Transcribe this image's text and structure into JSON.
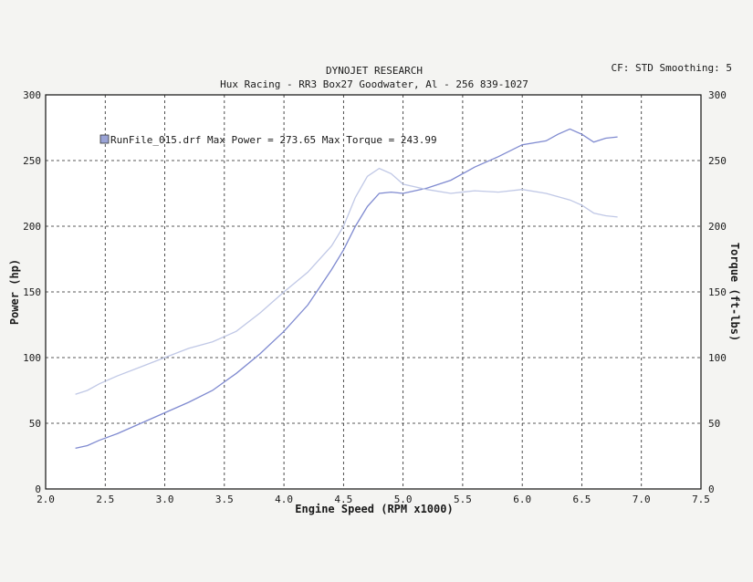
{
  "header": {
    "title": "DYNOJET RESEARCH",
    "subtitle": "Hux Racing - RR3 Box27 Goodwater, Al - 256 839-1027",
    "corner_info": "CF: STD  Smoothing: 5"
  },
  "legend": {
    "text": "RunFile_015.drf Max Power = 273.65    Max Torque = 243.99",
    "swatch_color": "#9aa3d6"
  },
  "colors": {
    "power": "#7f8ad0",
    "torque": "#c0c8e6"
  },
  "chart_data": {
    "type": "line",
    "xlabel": "Engine Speed (RPM x1000)",
    "ylabel": "Power (hp)",
    "y2label": "Torque (ft-lbs)",
    "xlim": [
      2.0,
      7.5
    ],
    "ylim": [
      0,
      300
    ],
    "y2lim": [
      0,
      300
    ],
    "xticks": [
      "2.0",
      "2.5",
      "3.0",
      "3.5",
      "4.0",
      "4.5",
      "5.0",
      "5.5",
      "6.0",
      "6.5",
      "7.0",
      "7.5"
    ],
    "yticks": [
      "0",
      "50",
      "100",
      "150",
      "200",
      "250",
      "300"
    ],
    "y2ticks": [
      "0",
      "50",
      "100",
      "150",
      "200",
      "250",
      "300"
    ],
    "grid": true,
    "series": [
      {
        "name": "Power",
        "axis": "left",
        "x": [
          2.25,
          2.35,
          2.45,
          2.6,
          2.8,
          3.0,
          3.2,
          3.4,
          3.6,
          3.8,
          4.0,
          4.2,
          4.4,
          4.5,
          4.6,
          4.7,
          4.8,
          4.9,
          5.0,
          5.2,
          5.4,
          5.6,
          5.8,
          6.0,
          6.2,
          6.3,
          6.4,
          6.5,
          6.6,
          6.7,
          6.8
        ],
        "values": [
          31,
          33,
          37,
          42,
          50,
          58,
          66,
          75,
          88,
          103,
          120,
          140,
          167,
          182,
          200,
          215,
          225,
          226,
          225,
          229,
          235,
          245,
          253,
          262,
          265,
          270,
          274,
          270,
          264,
          267,
          268
        ]
      },
      {
        "name": "Torque",
        "axis": "right",
        "x": [
          2.25,
          2.35,
          2.45,
          2.6,
          2.8,
          3.0,
          3.2,
          3.4,
          3.6,
          3.8,
          4.0,
          4.2,
          4.4,
          4.5,
          4.6,
          4.7,
          4.8,
          4.9,
          5.0,
          5.2,
          5.4,
          5.6,
          5.8,
          6.0,
          6.2,
          6.4,
          6.5,
          6.6,
          6.7,
          6.8
        ],
        "values": [
          72,
          75,
          80,
          86,
          93,
          100,
          107,
          112,
          120,
          134,
          150,
          165,
          185,
          200,
          222,
          238,
          244,
          240,
          232,
          228,
          225,
          227,
          226,
          228,
          225,
          220,
          216,
          210,
          208,
          207
        ]
      }
    ]
  }
}
